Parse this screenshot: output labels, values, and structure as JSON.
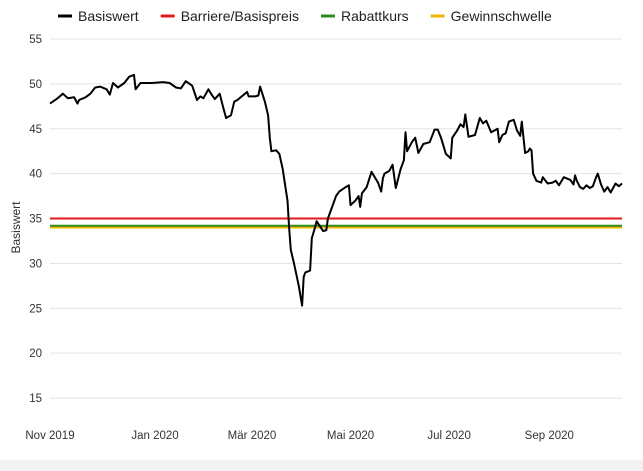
{
  "chart_data": {
    "type": "line",
    "ylabel": "Basiswert",
    "xlabel": "",
    "ylim": [
      12,
      56
    ],
    "y_ticks": [
      15,
      20,
      25,
      30,
      35,
      40,
      45,
      50,
      55
    ],
    "x_range": [
      "2019-10-28",
      "2020-10-01"
    ],
    "x_ticks": [
      {
        "label": "Nov 2019",
        "date": "2019-10-28"
      },
      {
        "label": "Jan 2020",
        "date": "2020-01-01"
      },
      {
        "label": "Mär 2020",
        "date": "2020-03-01"
      },
      {
        "label": "Mai 2020",
        "date": "2020-05-01"
      },
      {
        "label": "Jul 2020",
        "date": "2020-07-01"
      },
      {
        "label": "Sep 2020",
        "date": "2020-09-01"
      }
    ],
    "grid": "horizontal",
    "legend_position": "top",
    "series": [
      {
        "name": "Basiswert",
        "color": "#000000",
        "type": "line",
        "points": [
          [
            "2019-10-28",
            47.8
          ],
          [
            "2019-11-01",
            48.3
          ],
          [
            "2019-11-05",
            48.9
          ],
          [
            "2019-11-08",
            48.4
          ],
          [
            "2019-11-12",
            48.5
          ],
          [
            "2019-11-14",
            47.8
          ],
          [
            "2019-11-15",
            48.2
          ],
          [
            "2019-11-19",
            48.5
          ],
          [
            "2019-11-22",
            48.9
          ],
          [
            "2019-11-25",
            49.6
          ],
          [
            "2019-11-28",
            49.7
          ],
          [
            "2019-12-02",
            49.4
          ],
          [
            "2019-12-04",
            48.8
          ],
          [
            "2019-12-06",
            50.1
          ],
          [
            "2019-12-09",
            49.6
          ],
          [
            "2019-12-13",
            50.1
          ],
          [
            "2019-12-16",
            50.8
          ],
          [
            "2019-12-19",
            51.0
          ],
          [
            "2019-12-20",
            49.4
          ],
          [
            "2019-12-23",
            50.1
          ],
          [
            "2019-12-30",
            50.1
          ],
          [
            "2020-01-06",
            50.2
          ],
          [
            "2020-01-10",
            50.1
          ],
          [
            "2020-01-14",
            49.6
          ],
          [
            "2020-01-17",
            49.5
          ],
          [
            "2020-01-20",
            50.3
          ],
          [
            "2020-01-24",
            49.8
          ],
          [
            "2020-01-27",
            48.2
          ],
          [
            "2020-01-29",
            48.6
          ],
          [
            "2020-01-31",
            48.4
          ],
          [
            "2020-02-03",
            49.4
          ],
          [
            "2020-02-05",
            48.8
          ],
          [
            "2020-02-07",
            48.3
          ],
          [
            "2020-02-10",
            48.9
          ],
          [
            "2020-02-12",
            47.5
          ],
          [
            "2020-02-14",
            46.2
          ],
          [
            "2020-02-17",
            46.5
          ],
          [
            "2020-02-19",
            48.0
          ],
          [
            "2020-02-21",
            48.2
          ],
          [
            "2020-02-25",
            48.8
          ],
          [
            "2020-02-27",
            49.1
          ],
          [
            "2020-02-28",
            48.6
          ],
          [
            "2020-03-03",
            48.6
          ],
          [
            "2020-03-05",
            48.7
          ],
          [
            "2020-03-06",
            49.7
          ],
          [
            "2020-03-09",
            48.0
          ],
          [
            "2020-03-11",
            46.5
          ],
          [
            "2020-03-12",
            44.0
          ],
          [
            "2020-03-13",
            42.5
          ],
          [
            "2020-03-16",
            42.6
          ],
          [
            "2020-03-18",
            42.2
          ],
          [
            "2020-03-20",
            40.5
          ],
          [
            "2020-03-23",
            37.0
          ],
          [
            "2020-03-24",
            34.0
          ],
          [
            "2020-03-25",
            31.5
          ],
          [
            "2020-03-27",
            30.0
          ],
          [
            "2020-03-30",
            27.5
          ],
          [
            "2020-04-01",
            25.3
          ],
          [
            "2020-04-02",
            28.5
          ],
          [
            "2020-04-03",
            29.0
          ],
          [
            "2020-04-06",
            29.2
          ],
          [
            "2020-04-07",
            32.8
          ],
          [
            "2020-04-09",
            34.0
          ],
          [
            "2020-04-10",
            34.7
          ],
          [
            "2020-04-14",
            33.6
          ],
          [
            "2020-04-16",
            33.7
          ],
          [
            "2020-04-17",
            35.0
          ],
          [
            "2020-04-20",
            36.5
          ],
          [
            "2020-04-22",
            37.5
          ],
          [
            "2020-04-24",
            38.0
          ],
          [
            "2020-04-28",
            38.5
          ],
          [
            "2020-04-30",
            38.7
          ],
          [
            "2020-05-01",
            36.5
          ],
          [
            "2020-05-04",
            37.0
          ],
          [
            "2020-05-06",
            37.5
          ],
          [
            "2020-05-07",
            36.3
          ],
          [
            "2020-05-08",
            37.8
          ],
          [
            "2020-05-11",
            38.5
          ],
          [
            "2020-05-14",
            40.2
          ],
          [
            "2020-05-18",
            39.0
          ],
          [
            "2020-05-20",
            38.0
          ],
          [
            "2020-05-21",
            39.5
          ],
          [
            "2020-05-22",
            40.0
          ],
          [
            "2020-05-25",
            40.3
          ],
          [
            "2020-05-27",
            41.0
          ],
          [
            "2020-05-29",
            38.4
          ],
          [
            "2020-06-01",
            40.5
          ],
          [
            "2020-06-03",
            41.5
          ],
          [
            "2020-06-04",
            44.6
          ],
          [
            "2020-06-05",
            42.5
          ],
          [
            "2020-06-08",
            43.5
          ],
          [
            "2020-06-10",
            44.0
          ],
          [
            "2020-06-12",
            42.3
          ],
          [
            "2020-06-15",
            43.3
          ],
          [
            "2020-06-19",
            43.5
          ],
          [
            "2020-06-22",
            44.9
          ],
          [
            "2020-06-24",
            44.9
          ],
          [
            "2020-06-26",
            44.0
          ],
          [
            "2020-06-29",
            42.2
          ],
          [
            "2020-07-02",
            41.7
          ],
          [
            "2020-07-03",
            44.0
          ],
          [
            "2020-07-06",
            44.8
          ],
          [
            "2020-07-08",
            45.5
          ],
          [
            "2020-07-10",
            45.2
          ],
          [
            "2020-07-11",
            46.6
          ],
          [
            "2020-07-13",
            44.1
          ],
          [
            "2020-07-15",
            44.2
          ],
          [
            "2020-07-17",
            44.3
          ],
          [
            "2020-07-20",
            46.2
          ],
          [
            "2020-07-22",
            45.6
          ],
          [
            "2020-07-24",
            45.9
          ],
          [
            "2020-07-27",
            44.6
          ],
          [
            "2020-07-29",
            44.8
          ],
          [
            "2020-07-31",
            45.0
          ],
          [
            "2020-08-01",
            43.5
          ],
          [
            "2020-08-03",
            44.3
          ],
          [
            "2020-08-05",
            44.5
          ],
          [
            "2020-08-07",
            45.8
          ],
          [
            "2020-08-10",
            46.0
          ],
          [
            "2020-08-12",
            44.8
          ],
          [
            "2020-08-14",
            44.2
          ],
          [
            "2020-08-15",
            45.8
          ],
          [
            "2020-08-17",
            42.3
          ],
          [
            "2020-08-19",
            42.5
          ],
          [
            "2020-08-20",
            42.8
          ],
          [
            "2020-08-21",
            42.6
          ],
          [
            "2020-08-22",
            40.0
          ],
          [
            "2020-08-24",
            39.2
          ],
          [
            "2020-08-27",
            39.0
          ],
          [
            "2020-08-28",
            39.6
          ],
          [
            "2020-08-31",
            38.9
          ],
          [
            "2020-09-03",
            39.0
          ],
          [
            "2020-09-05",
            39.2
          ],
          [
            "2020-09-07",
            38.7
          ],
          [
            "2020-09-10",
            39.6
          ],
          [
            "2020-09-14",
            39.3
          ],
          [
            "2020-09-16",
            38.8
          ],
          [
            "2020-09-17",
            39.8
          ],
          [
            "2020-09-18",
            39.2
          ],
          [
            "2020-09-20",
            38.5
          ],
          [
            "2020-09-22",
            38.3
          ],
          [
            "2020-09-24",
            38.7
          ],
          [
            "2020-09-26",
            38.4
          ],
          [
            "2020-09-28",
            38.6
          ],
          [
            "2020-09-30",
            39.6
          ],
          [
            "2020-10-01",
            40.0
          ],
          [
            "2020-10-03",
            38.8
          ],
          [
            "2020-10-05",
            38.0
          ],
          [
            "2020-10-07",
            38.5
          ],
          [
            "2020-10-09",
            37.9
          ],
          [
            "2020-10-12",
            38.9
          ],
          [
            "2020-10-14",
            38.6
          ],
          [
            "2020-10-16",
            38.9
          ]
        ]
      },
      {
        "name": "Barriere/Basispreis",
        "color": "#e31a1c",
        "type": "hline",
        "value": 35.0
      },
      {
        "name": "Rabattkurs",
        "color": "#2e8b1e",
        "type": "hline",
        "value": 34.2
      },
      {
        "name": "Gewinnschwelle",
        "color": "#f0b400",
        "type": "hline",
        "value": 34.0
      }
    ]
  }
}
